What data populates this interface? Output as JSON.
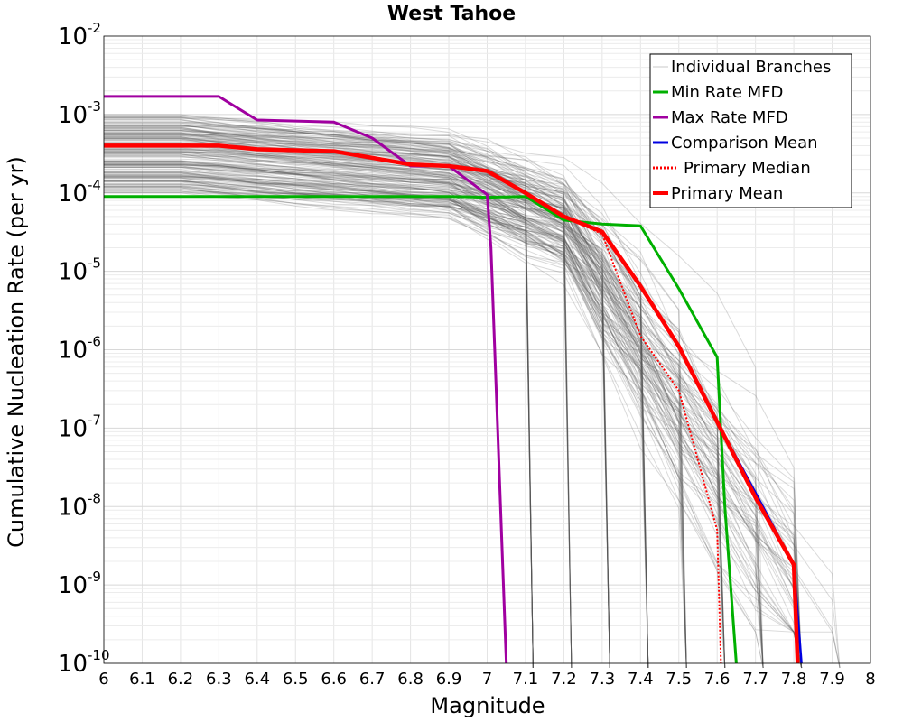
{
  "chart_data": {
    "type": "line",
    "title": "West Tahoe",
    "xlabel": "Magnitude",
    "ylabel": "Cumulative Nucleation Rate (per yr)",
    "y_scale": "log",
    "xlim": [
      6,
      8
    ],
    "ylim": [
      1e-10,
      0.01
    ],
    "x_ticks": [
      "6",
      "6.1",
      "6.2",
      "6.3",
      "6.4",
      "6.5",
      "6.6",
      "6.7",
      "6.8",
      "6.9",
      "7",
      "7.1",
      "7.2",
      "7.3",
      "7.4",
      "7.5",
      "7.6",
      "7.7",
      "7.8",
      "7.9",
      "8"
    ],
    "y_ticks": [
      {
        "base": "10",
        "exp": "-2",
        "value": 0.01
      },
      {
        "base": "10",
        "exp": "-3",
        "value": 0.001
      },
      {
        "base": "10",
        "exp": "-4",
        "value": 0.0001
      },
      {
        "base": "10",
        "exp": "-5",
        "value": 1e-05
      },
      {
        "base": "10",
        "exp": "-6",
        "value": 1e-06
      },
      {
        "base": "10",
        "exp": "-7",
        "value": 1e-07
      },
      {
        "base": "10",
        "exp": "-8",
        "value": 1e-08
      },
      {
        "base": "10",
        "exp": "-9",
        "value": 1e-09
      },
      {
        "base": "10",
        "exp": "-10",
        "value": 1e-10
      }
    ],
    "grid": true,
    "legend_position": "top-right",
    "series": [
      {
        "name": "Min Rate MFD",
        "color": "#00b000",
        "style": "solid",
        "x": [
          6.0,
          6.9,
          7.0,
          7.1,
          7.2,
          7.3,
          7.4,
          7.5,
          7.6,
          7.62,
          7.65
        ],
        "y": [
          9e-05,
          9e-05,
          8.8e-05,
          9e-05,
          4.5e-05,
          4e-05,
          3.8e-05,
          6e-06,
          8e-07,
          1e-08,
          1e-10
        ]
      },
      {
        "name": "Max Rate MFD",
        "color": "#a000a0",
        "style": "solid",
        "x": [
          6.0,
          6.3,
          6.4,
          6.6,
          6.7,
          6.8,
          6.9,
          7.0,
          7.01,
          7.05
        ],
        "y": [
          0.0017,
          0.0017,
          0.00085,
          0.0008,
          0.0005,
          0.00022,
          0.00022,
          9.5e-05,
          2e-05,
          1e-10
        ]
      },
      {
        "name": "Comparison Mean",
        "color": "#0000e0",
        "style": "solid",
        "x": [
          7.5,
          7.6,
          7.7,
          7.8,
          7.82
        ],
        "y": [
          1.1e-06,
          1.2e-07,
          1.5e-08,
          1.8e-09,
          1e-10
        ]
      },
      {
        "name": "Primary Median",
        "color": "#ff0000",
        "style": "dotted",
        "x": [
          7.2,
          7.3,
          7.4,
          7.5,
          7.6,
          7.61
        ],
        "y": [
          5e-05,
          3e-05,
          1.5e-06,
          3e-07,
          5e-09,
          1e-10
        ]
      },
      {
        "name": "Primary Mean",
        "color": "#ff0000",
        "style": "solid",
        "x": [
          6.0,
          6.3,
          6.4,
          6.6,
          6.7,
          6.8,
          6.9,
          7.0,
          7.1,
          7.2,
          7.3,
          7.4,
          7.5,
          7.6,
          7.7,
          7.8,
          7.81
        ],
        "y": [
          0.0004,
          0.0004,
          0.00036,
          0.00034,
          0.00028,
          0.00023,
          0.00022,
          0.00019,
          0.0001,
          5e-05,
          3.2e-05,
          6.5e-06,
          1.1e-06,
          1.2e-07,
          1.3e-08,
          1.8e-09,
          1e-10
        ]
      }
    ],
    "individual_branches": {
      "name": "Individual Branches",
      "color": "#555555"
    }
  },
  "legend": {
    "items": [
      {
        "label": "Individual Branches",
        "color": "#c8c8c8",
        "style": "thin"
      },
      {
        "label": "Min Rate MFD",
        "color": "#00b000",
        "style": "solid"
      },
      {
        "label": "Max Rate MFD",
        "color": "#a000a0",
        "style": "solid"
      },
      {
        "label": "Comparison Mean",
        "color": "#0000e0",
        "style": "solid"
      },
      {
        "label": "Primary Median",
        "color": "#ff0000",
        "style": "dotted"
      },
      {
        "label": "Primary Mean",
        "color": "#ff0000",
        "style": "thick"
      }
    ]
  }
}
